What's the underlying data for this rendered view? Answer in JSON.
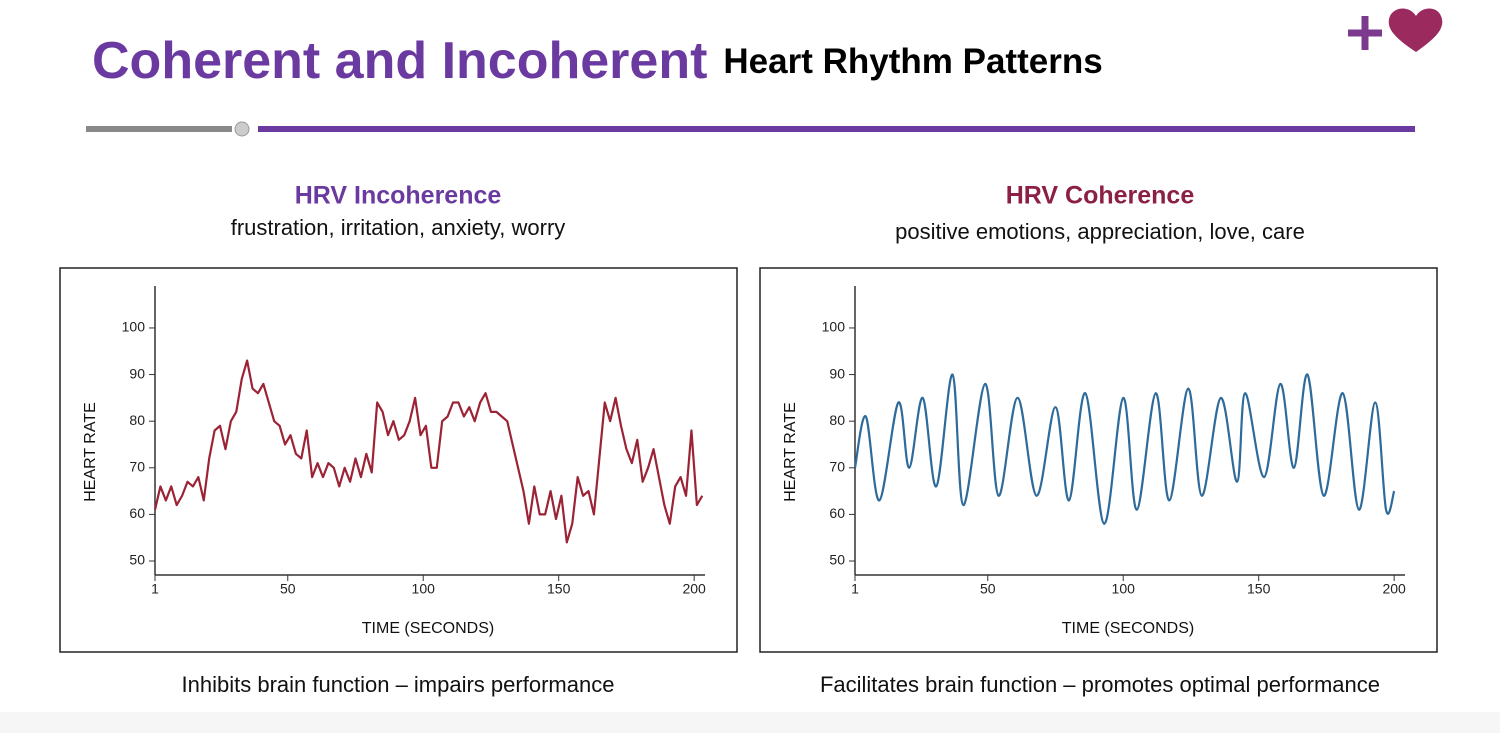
{
  "header": {
    "title_main": "Coherent and Incoherent",
    "title_rest": "Heart Rhythm Patterns"
  },
  "chart_data": [
    {
      "type": "line",
      "title": "HRV Incoherence",
      "subtitle": "frustration, irritation, anxiety, worry",
      "caption": "Inhibits brain function – impairs performance",
      "xlabel": "TIME (SECONDS)",
      "ylabel": "HEART RATE",
      "title_color": "#6b3aa0",
      "smooth": false,
      "xlim": [
        1,
        204
      ],
      "ylim": [
        47,
        109
      ],
      "xticks": [
        1,
        50,
        100,
        150,
        200
      ],
      "yticks": [
        50,
        60,
        70,
        80,
        90,
        100
      ],
      "series": [
        {
          "name": "HRV Incoherence",
          "color": "#9b2335",
          "x": [
            1,
            3,
            5,
            7,
            9,
            11,
            13,
            15,
            17,
            19,
            21,
            23,
            25,
            27,
            29,
            31,
            33,
            35,
            37,
            39,
            41,
            43,
            45,
            47,
            49,
            51,
            53,
            55,
            57,
            59,
            61,
            63,
            65,
            67,
            69,
            71,
            73,
            75,
            77,
            79,
            81,
            83,
            85,
            87,
            89,
            91,
            93,
            95,
            97,
            99,
            101,
            103,
            105,
            107,
            109,
            111,
            113,
            115,
            117,
            119,
            121,
            123,
            125,
            127,
            129,
            131,
            133,
            135,
            137,
            139,
            141,
            143,
            145,
            147,
            149,
            151,
            153,
            155,
            157,
            159,
            161,
            163,
            165,
            167,
            169,
            171,
            173,
            175,
            177,
            179,
            181,
            183,
            185,
            187,
            189,
            191,
            193,
            195,
            197,
            199,
            201,
            203
          ],
          "values": [
            61,
            66,
            63,
            66,
            62,
            64,
            67,
            66,
            68,
            63,
            72,
            78,
            79,
            74,
            80,
            82,
            89,
            93,
            87,
            86,
            88,
            84,
            80,
            79,
            75,
            77,
            73,
            72,
            78,
            68,
            71,
            68,
            71,
            70,
            66,
            70,
            67,
            72,
            68,
            73,
            69,
            84,
            82,
            77,
            80,
            76,
            77,
            80,
            85,
            77,
            79,
            70,
            70,
            80,
            81,
            84,
            84,
            81,
            83,
            80,
            84,
            86,
            82,
            82,
            81,
            80,
            75,
            70,
            65,
            58,
            66,
            60,
            60,
            65,
            59,
            64,
            54,
            58,
            68,
            64,
            65,
            60,
            72,
            84,
            80,
            85,
            79,
            74,
            71,
            76,
            67,
            70,
            74,
            68,
            62,
            58,
            66,
            68,
            64,
            78,
            62,
            64
          ]
        }
      ]
    },
    {
      "type": "line",
      "title": "HRV Coherence",
      "subtitle": "positive emotions, appreciation, love, care",
      "caption": "Facilitates brain function – promotes optimal performance",
      "xlabel": "TIME (SECONDS)",
      "ylabel": "HEART RATE",
      "title_color": "#8b1f45",
      "smooth": true,
      "xlim": [
        1,
        204
      ],
      "ylim": [
        47,
        109
      ],
      "xticks": [
        1,
        50,
        100,
        150,
        200
      ],
      "yticks": [
        50,
        60,
        70,
        80,
        90,
        100
      ],
      "series": [
        {
          "name": "HRV Coherence",
          "color": "#2e6a9a",
          "x": [
            1,
            5,
            10,
            17,
            21,
            26,
            31,
            37,
            41,
            49,
            54,
            61,
            68,
            75,
            80,
            86,
            93,
            100,
            105,
            112,
            117,
            124,
            129,
            136,
            142,
            145,
            152,
            158,
            163,
            168,
            174,
            181,
            187,
            193,
            197,
            200
          ],
          "values": [
            70,
            81,
            63,
            84,
            70,
            85,
            66,
            90,
            62,
            88,
            64,
            85,
            64,
            83,
            63,
            86,
            58,
            85,
            61,
            86,
            63,
            87,
            64,
            85,
            67,
            86,
            68,
            88,
            70,
            90,
            64,
            86,
            61,
            84,
            61,
            65
          ]
        }
      ]
    }
  ]
}
